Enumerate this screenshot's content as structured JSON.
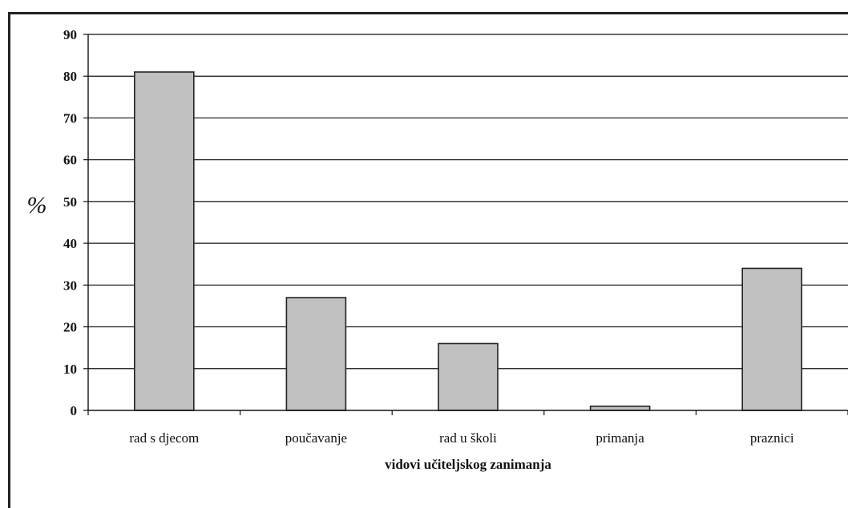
{
  "chart_data": {
    "type": "bar",
    "categories": [
      "rad s djecom",
      "poučavanje",
      "rad u školi",
      "primanja",
      "praznici"
    ],
    "values": [
      81,
      27,
      16,
      1,
      34
    ],
    "title": "",
    "xlabel": "vidovi učiteljskog zanimanja",
    "ylabel": "%",
    "ylim": [
      0,
      90
    ],
    "yticks": [
      "0",
      "10",
      "20",
      "30",
      "40",
      "50",
      "60",
      "70",
      "80",
      "90"
    ],
    "grid": true,
    "legend": "none",
    "colors": {
      "bar_fill": "#c0c0c0",
      "bar_stroke": "#222222",
      "grid": "#111111",
      "axis": "#111111"
    }
  }
}
